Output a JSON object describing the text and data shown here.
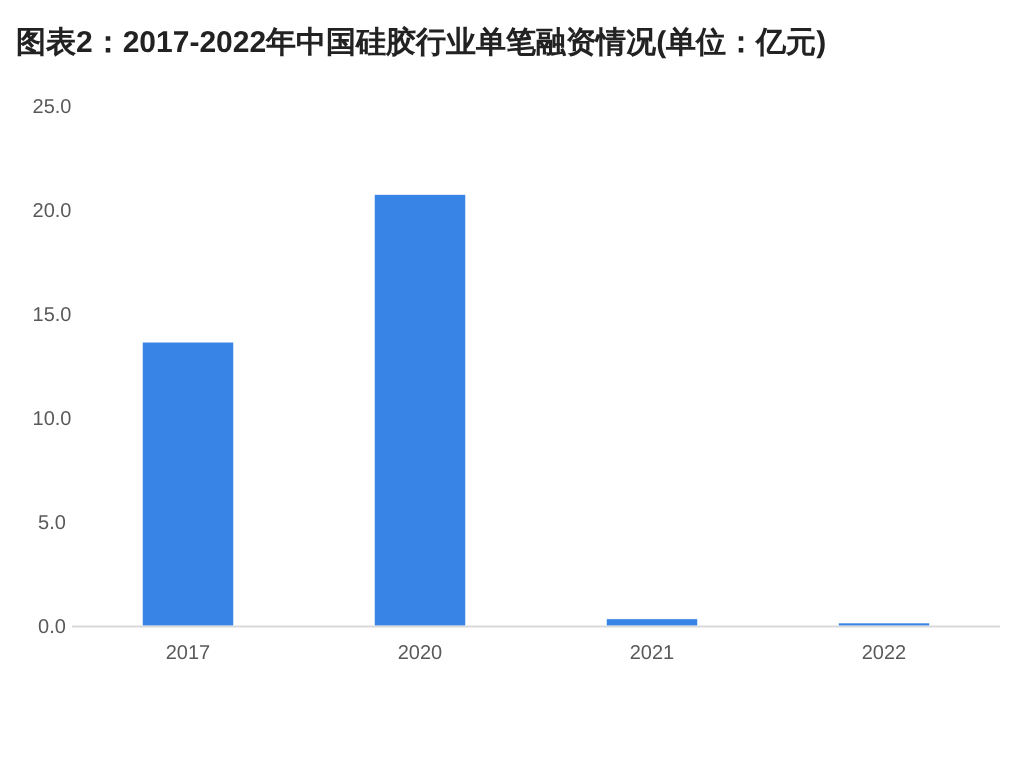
{
  "chart_data": {
    "type": "bar",
    "title": "图表2：2017-2022年中国硅胶行业单笔融资情况(单位：亿元)",
    "categories": [
      "2017",
      "2020",
      "2021",
      "2022"
    ],
    "values": [
      13.6,
      20.7,
      0.3,
      0.1
    ],
    "color": "#3884e6",
    "ylim": [
      0,
      25
    ],
    "yticks": [
      {
        "value": 0,
        "label": "0.0"
      },
      {
        "value": 5,
        "label": "5.0"
      },
      {
        "value": 10,
        "label": "10.0"
      },
      {
        "value": 15,
        "label": "15.0"
      },
      {
        "value": 20,
        "label": "20.0"
      },
      {
        "value": 25,
        "label": "25.0"
      }
    ],
    "grid": false
  }
}
